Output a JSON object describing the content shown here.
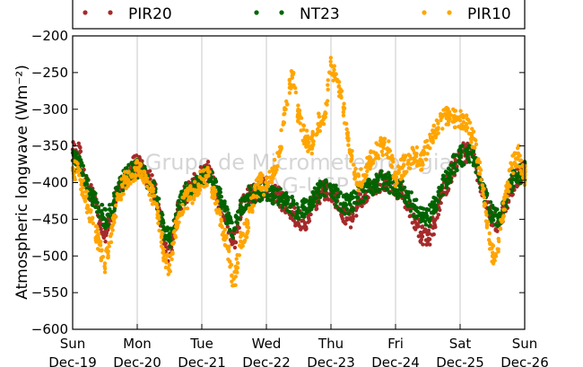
{
  "chart_data": {
    "type": "scatter",
    "ylabel": "Atmospheric longwave (Wm⁻²)",
    "ylim": [
      -600,
      -200
    ],
    "yticks": [
      -600,
      -550,
      -500,
      -450,
      -400,
      -350,
      -300,
      -250,
      -200
    ],
    "x_unit": "days",
    "xlim": [
      0,
      7
    ],
    "xticks": [
      {
        "value": 0,
        "day": "Sun",
        "date": "Dec-19"
      },
      {
        "value": 1,
        "day": "Mon",
        "date": "Dec-20"
      },
      {
        "value": 2,
        "day": "Tue",
        "date": "Dec-21"
      },
      {
        "value": 3,
        "day": "Wed",
        "date": "Dec-22"
      },
      {
        "value": 4,
        "day": "Thu",
        "date": "Dec-23"
      },
      {
        "value": 5,
        "day": "Fri",
        "date": "Dec-24"
      },
      {
        "value": 6,
        "day": "Sat",
        "date": "Dec-25"
      },
      {
        "value": 7,
        "day": "Sun",
        "date": "Dec-26"
      }
    ],
    "grid": "vertical",
    "legend_position": "top",
    "watermark": [
      "Grupo de Micrometeorologia",
      "IAG-USP"
    ],
    "series": [
      {
        "name": "PIR20",
        "color": "#a52a2a",
        "x": [
          0,
          0.1,
          0.2,
          0.3,
          0.4,
          0.5,
          0.6,
          0.7,
          0.8,
          0.9,
          1.0,
          1.1,
          1.2,
          1.3,
          1.4,
          1.5,
          1.6,
          1.7,
          1.8,
          1.9,
          2.0,
          2.1,
          2.2,
          2.3,
          2.4,
          2.5,
          2.6,
          2.7,
          2.8,
          2.9,
          3.0,
          3.1,
          3.2,
          3.3,
          3.4,
          3.5,
          3.6,
          3.7,
          3.8,
          3.9,
          4.0,
          4.1,
          4.2,
          4.3,
          4.4,
          4.5,
          4.6,
          4.7,
          4.8,
          4.9,
          5.0,
          5.1,
          5.2,
          5.3,
          5.4,
          5.5,
          5.6,
          5.7,
          5.8,
          5.9,
          6.0,
          6.1,
          6.2,
          6.3,
          6.4,
          6.5,
          6.6,
          6.7,
          6.8,
          6.9,
          7.0
        ],
        "y": [
          -355,
          -360,
          -395,
          -420,
          -440,
          -470,
          -450,
          -410,
          -395,
          -380,
          -375,
          -385,
          -395,
          -420,
          -480,
          -500,
          -450,
          -420,
          -410,
          -400,
          -390,
          -385,
          -405,
          -430,
          -460,
          -480,
          -440,
          -420,
          -415,
          -410,
          -405,
          -412,
          -420,
          -430,
          -440,
          -450,
          -455,
          -430,
          -420,
          -410,
          -415,
          -425,
          -440,
          -450,
          -430,
          -420,
          -410,
          -405,
          -395,
          -400,
          -405,
          -415,
          -430,
          -450,
          -470,
          -480,
          -455,
          -420,
          -400,
          -380,
          -360,
          -358,
          -362,
          -395,
          -420,
          -450,
          -460,
          -430,
          -405,
          -390,
          -385
        ]
      },
      {
        "name": "NT23",
        "color": "#006400",
        "x": [
          0,
          0.1,
          0.2,
          0.3,
          0.4,
          0.5,
          0.6,
          0.7,
          0.8,
          0.9,
          1.0,
          1.1,
          1.2,
          1.3,
          1.4,
          1.5,
          1.6,
          1.7,
          1.8,
          1.9,
          2.0,
          2.1,
          2.2,
          2.3,
          2.4,
          2.5,
          2.6,
          2.7,
          2.8,
          2.9,
          3.0,
          3.1,
          3.2,
          3.3,
          3.4,
          3.5,
          3.6,
          3.7,
          3.8,
          3.9,
          4.0,
          4.1,
          4.2,
          4.3,
          4.4,
          4.5,
          4.6,
          4.7,
          4.8,
          4.9,
          5.0,
          5.1,
          5.2,
          5.3,
          5.4,
          5.5,
          5.6,
          5.7,
          5.8,
          5.9,
          6.0,
          6.1,
          6.2,
          6.3,
          6.4,
          6.5,
          6.6,
          6.7,
          6.8,
          6.9,
          7.0
        ],
        "y": [
          -370,
          -375,
          -400,
          -420,
          -435,
          -450,
          -440,
          -410,
          -395,
          -385,
          -380,
          -390,
          -400,
          -420,
          -460,
          -480,
          -445,
          -420,
          -410,
          -400,
          -395,
          -390,
          -405,
          -425,
          -450,
          -465,
          -435,
          -420,
          -415,
          -415,
          -410,
          -415,
          -420,
          -425,
          -430,
          -440,
          -435,
          -425,
          -415,
          -405,
          -410,
          -420,
          -430,
          -430,
          -420,
          -412,
          -405,
          -400,
          -395,
          -400,
          -405,
          -410,
          -420,
          -435,
          -445,
          -450,
          -430,
          -410,
          -395,
          -375,
          -365,
          -360,
          -365,
          -395,
          -420,
          -445,
          -450,
          -425,
          -400,
          -388,
          -385
        ]
      },
      {
        "name": "PIR10",
        "color": "#ffa500",
        "x": [
          0,
          0.1,
          0.2,
          0.3,
          0.4,
          0.5,
          0.6,
          0.7,
          0.8,
          0.9,
          1.0,
          1.1,
          1.2,
          1.3,
          1.4,
          1.5,
          1.6,
          1.7,
          1.8,
          1.9,
          2.0,
          2.1,
          2.2,
          2.3,
          2.4,
          2.5,
          2.6,
          2.7,
          2.8,
          2.9,
          3.0,
          3.1,
          3.2,
          3.3,
          3.4,
          3.5,
          3.6,
          3.7,
          3.8,
          3.9,
          4.0,
          4.1,
          4.2,
          4.3,
          4.4,
          4.5,
          4.6,
          4.7,
          4.8,
          4.9,
          5.0,
          5.1,
          5.2,
          5.3,
          5.4,
          5.5,
          5.6,
          5.7,
          5.8,
          5.9,
          6.0,
          6.1,
          6.2,
          6.3,
          6.4,
          6.5,
          6.6,
          6.7,
          6.8,
          6.9,
          7.0
        ],
        "y": [
          -380,
          -390,
          -420,
          -450,
          -480,
          -510,
          -470,
          -420,
          -400,
          -390,
          -380,
          -395,
          -410,
          -430,
          -490,
          -520,
          -460,
          -430,
          -420,
          -410,
          -395,
          -390,
          -420,
          -450,
          -490,
          -540,
          -480,
          -460,
          -420,
          -400,
          -405,
          -390,
          -360,
          -300,
          -250,
          -310,
          -340,
          -350,
          -320,
          -310,
          -240,
          -260,
          -300,
          -360,
          -400,
          -390,
          -370,
          -360,
          -350,
          -355,
          -395,
          -380,
          -370,
          -360,
          -370,
          -350,
          -330,
          -315,
          -310,
          -310,
          -315,
          -320,
          -340,
          -380,
          -440,
          -500,
          -480,
          -420,
          -380,
          -360,
          -390
        ]
      }
    ]
  }
}
